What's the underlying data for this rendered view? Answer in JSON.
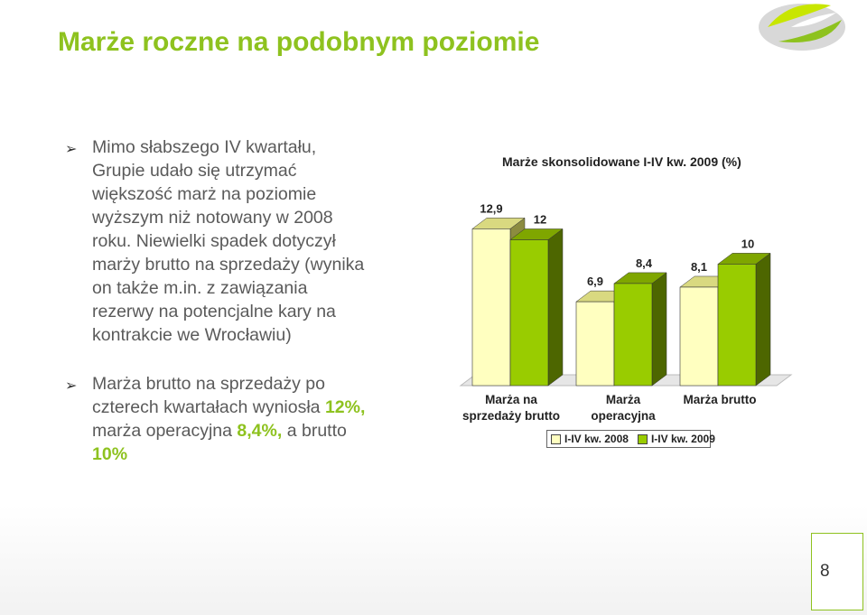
{
  "title": "Marże roczne na podobnym poziomie",
  "bullets": [
    {
      "text": "Mimo słabszego IV kwartału, Grupie udało się utrzymać większość marż na poziomie wyższym niż notowany w 2008 roku. Niewielki spadek dotyczył marży brutto na sprzedaży (wynika on także m.in. z zawiązania rezerwy na potencjalne kary na kontrakcie we Wrocławiu)"
    },
    {
      "text_1": "Marża brutto na sprzedaży po czterech kwartałach wyniosła ",
      "hl_1": "12%,",
      "text_2": " marża operacyjna ",
      "hl_2": "8,4%,",
      "text_3": " a brutto ",
      "hl_3": "10%"
    }
  ],
  "colors": {
    "accent": "#8ec21f",
    "series_2008_front": "#ffffc0",
    "series_2009_front": "#99cc00",
    "series_2009_side": "#4d6600"
  },
  "page_number": "8",
  "chart_data": {
    "type": "bar",
    "title": "Marże skonsolidowane I-IV kw. 2009 (%)",
    "categories": [
      "Marża na sprzedaży brutto",
      "Marża operacyjna",
      "Marża brutto"
    ],
    "category_lines": [
      [
        "Marża na",
        "sprzedaży brutto"
      ],
      [
        "Marża",
        "operacyjna"
      ],
      [
        "Marża brutto"
      ]
    ],
    "series": [
      {
        "name": "I-IV kw. 2008",
        "values": [
          12.9,
          6.9,
          8.1
        ],
        "labels": [
          "12,9",
          "6,9",
          "8,1"
        ]
      },
      {
        "name": "I-IV kw. 2009",
        "values": [
          12,
          8.4,
          10
        ],
        "labels": [
          "12",
          "8,4",
          "10"
        ]
      }
    ],
    "ylim": [
      0,
      13
    ],
    "grid": false,
    "legend": "bottom"
  }
}
